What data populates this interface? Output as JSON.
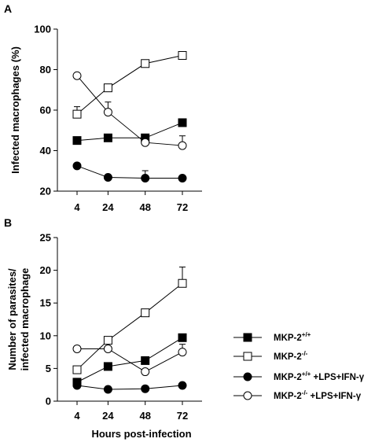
{
  "figure": {
    "xlabel": "Hours post-infection"
  },
  "chart_data": [
    {
      "type": "line",
      "panel_label": "A",
      "ylabel": "Infected macrophages (%)",
      "ylabel_lines": [
        "Infected macrophages (%)"
      ],
      "x": [
        4,
        24,
        48,
        72
      ],
      "x_tick_labels": [
        "4",
        "24",
        "48",
        "72"
      ],
      "ylim": [
        20,
        100
      ],
      "y_ticks": [
        20,
        40,
        60,
        80,
        100
      ],
      "y_tick_labels": [
        "20",
        "40",
        "60",
        "80",
        "100"
      ],
      "grid": false,
      "series": [
        {
          "name": "MKP-2+/+",
          "marker": "square",
          "fill": "black",
          "values": [
            45,
            46.3,
            46.3,
            53.8
          ],
          "err_upper": [
            0,
            0,
            0,
            0
          ]
        },
        {
          "name": "MKP-2-/-",
          "marker": "square",
          "fill": "white",
          "values": [
            58,
            71,
            83,
            87
          ],
          "err_upper": [
            3.7,
            0,
            0,
            0
          ]
        },
        {
          "name": "MKP-2+/+ +LPS+IFN-γ",
          "marker": "circle",
          "fill": "black",
          "values": [
            32.5,
            26.8,
            26.4,
            26.4
          ],
          "err_upper": [
            0,
            0,
            3.7,
            0
          ]
        },
        {
          "name": "MKP-2-/- +LPS+IFN-γ",
          "marker": "circle",
          "fill": "white",
          "values": [
            77,
            59,
            44,
            42.5
          ],
          "err_upper": [
            0,
            5,
            0,
            4.8
          ]
        }
      ]
    },
    {
      "type": "line",
      "panel_label": "B",
      "ylabel": "Number of parasites/ infected macrophage",
      "ylabel_lines": [
        "Number of parasites/",
        "infected macrophage"
      ],
      "x": [
        4,
        24,
        48,
        72
      ],
      "x_tick_labels": [
        "4",
        "24",
        "48",
        "72"
      ],
      "ylim": [
        0,
        25
      ],
      "y_ticks": [
        0,
        5,
        10,
        15,
        20,
        25
      ],
      "y_tick_labels": [
        "0",
        "5",
        "10",
        "15",
        "20",
        "25"
      ],
      "grid": false,
      "series": [
        {
          "name": "MKP-2+/+",
          "marker": "square",
          "fill": "black",
          "values": [
            2.9,
            5.3,
            6.2,
            9.7
          ],
          "err_upper": [
            0,
            0,
            0,
            0
          ]
        },
        {
          "name": "MKP-2-/-",
          "marker": "square",
          "fill": "white",
          "values": [
            4.8,
            9.3,
            13.5,
            18
          ],
          "err_upper": [
            0,
            0,
            0,
            2.5
          ]
        },
        {
          "name": "MKP-2+/+ +LPS+IFN-γ",
          "marker": "circle",
          "fill": "black",
          "values": [
            2.4,
            1.8,
            1.9,
            2.4
          ],
          "err_upper": [
            0,
            0,
            0,
            0
          ]
        },
        {
          "name": "MKP-2-/- +LPS+IFN-γ",
          "marker": "circle",
          "fill": "white",
          "values": [
            8,
            8,
            4.5,
            7.5
          ],
          "err_upper": [
            0,
            0,
            0,
            1.2
          ]
        }
      ]
    }
  ],
  "legend": {
    "position": "right of panel B",
    "entries": [
      {
        "base": "MKP-2",
        "sup": "+/+",
        "suffix": "",
        "marker": "square",
        "fill": "black"
      },
      {
        "base": "MKP-2",
        "sup": "-/-",
        "suffix": "",
        "marker": "square",
        "fill": "white"
      },
      {
        "base": "MKP-2",
        "sup": "+/+",
        "suffix": " +LPS+IFN-γ",
        "marker": "circle",
        "fill": "black"
      },
      {
        "base": "MKP-2",
        "sup": "-/-",
        "suffix": " +LPS+IFN-γ",
        "marker": "circle",
        "fill": "white"
      }
    ]
  }
}
